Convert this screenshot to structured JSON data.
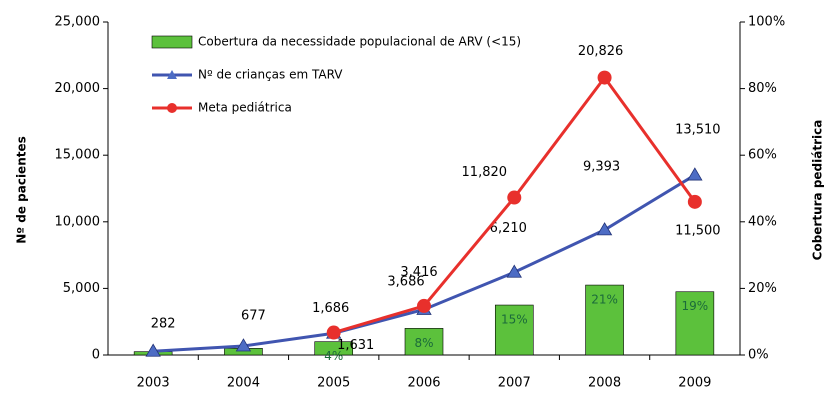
{
  "chart_data": {
    "type": "bar-line",
    "y_label": "Nº de pacientes",
    "y2_label": "Cobertura pediátrica",
    "categories": [
      "2003",
      "2004",
      "2005",
      "2006",
      "2007",
      "2008",
      "2009"
    ],
    "ylim": [
      0,
      25000
    ],
    "yticks": [
      0,
      {
        "value": 5000,
        "label": "5,000"
      },
      {
        "value": 10000,
        "label": "10,000"
      },
      {
        "value": 15000,
        "label": "15,000"
      },
      {
        "value": 20000,
        "label": "20,000"
      },
      {
        "value": 25000,
        "label": "25,000"
      }
    ],
    "y2lim": [
      0,
      100
    ],
    "y2ticks": [
      {
        "value": 0,
        "label": "0%"
      },
      {
        "value": 20,
        "label": "20%"
      },
      {
        "value": 40,
        "label": "40%"
      },
      {
        "value": 60,
        "label": "60%"
      },
      {
        "value": 80,
        "label": "80%"
      },
      {
        "value": 100,
        "label": "100%"
      }
    ],
    "series": [
      {
        "name": "Cobertura da necessidade populacional de ARV (<15)",
        "type": "bar",
        "axis": "y2",
        "color": "#5cc13c",
        "values": [
          1,
          2,
          4,
          8,
          15,
          21,
          19
        ],
        "value_labels": [
          null,
          null,
          "4%",
          "8%",
          "15%",
          "21%",
          "19%"
        ]
      },
      {
        "name": "Nº de crianças em TARV",
        "type": "line",
        "marker": "triangle",
        "color": "#4055b0",
        "marker_color": "#4d6cc4",
        "values": [
          282,
          677,
          1631,
          3416,
          6210,
          9393,
          13510
        ],
        "value_labels": [
          "282",
          "677",
          "1,631",
          "3,416",
          "6,210",
          "9,393",
          "13,510"
        ]
      },
      {
        "name": "Meta pediátrica",
        "type": "line",
        "marker": "circle",
        "color": "#e8302c",
        "marker_color": "#e8302c",
        "values": [
          null,
          null,
          1686,
          3686,
          11820,
          20826,
          11500
        ],
        "value_labels": [
          null,
          null,
          "1,686",
          "3,686",
          "11,820",
          "20,826",
          "11,500"
        ]
      }
    ]
  }
}
